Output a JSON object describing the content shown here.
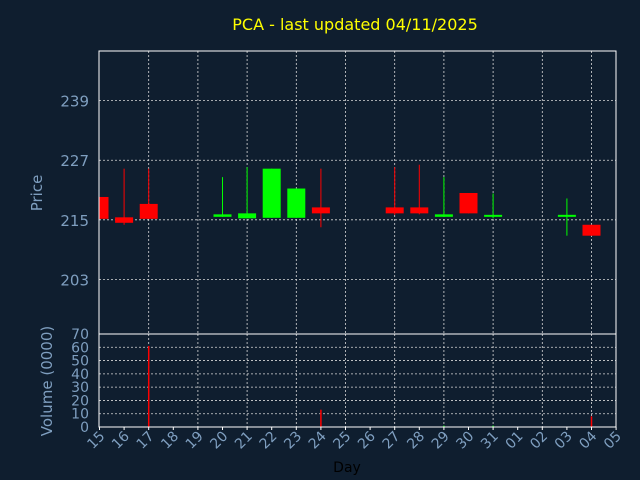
{
  "chart_data": {
    "type": "candlestick",
    "title": "PCA - last updated 04/11/2025",
    "ylabel": "Price",
    "volume_label": "Volume (0000)",
    "xlabel": "Day",
    "ylim": [
      192,
      249
    ],
    "yticks": [
      203,
      215,
      227,
      239
    ],
    "volume_ylim": [
      0,
      70
    ],
    "volume_yticks": [
      0,
      10,
      20,
      30,
      40,
      50,
      60,
      70
    ],
    "x_ticks": [
      "15",
      "16",
      "17",
      "18",
      "19",
      "20",
      "21",
      "22",
      "23",
      "24",
      "25",
      "26",
      "27",
      "28",
      "29",
      "30",
      "31",
      "01",
      "02",
      "03",
      "04",
      "05"
    ],
    "grid": true,
    "colors": {
      "up": "#00ff00",
      "down": "#ff0000",
      "background": "#0f1e2f",
      "title": "#ffff00",
      "axis_text": "#7f9fc0"
    },
    "candles": [
      {
        "x": "15",
        "open": 219.6,
        "high": 219.6,
        "low": 215.2,
        "close": 215.2
      },
      {
        "x": "16",
        "open": 215.5,
        "high": 225.3,
        "low": 214.0,
        "close": 214.4
      },
      {
        "x": "17",
        "open": 218.2,
        "high": 225.3,
        "low": 215.2,
        "close": 215.2
      },
      {
        "x": "20",
        "open": 215.6,
        "high": 223.6,
        "low": 215.6,
        "close": 216.1
      },
      {
        "x": "21",
        "open": 215.3,
        "high": 225.6,
        "low": 215.3,
        "close": 216.3
      },
      {
        "x": "22",
        "open": 215.4,
        "high": 225.3,
        "low": 215.4,
        "close": 225.3
      },
      {
        "x": "23",
        "open": 215.4,
        "high": 221.3,
        "low": 215.4,
        "close": 221.3
      },
      {
        "x": "24",
        "open": 217.5,
        "high": 225.3,
        "low": 213.5,
        "close": 216.3
      },
      {
        "x": "27",
        "open": 217.5,
        "high": 225.6,
        "low": 216.0,
        "close": 216.3
      },
      {
        "x": "28",
        "open": 217.5,
        "high": 226.1,
        "low": 216.1,
        "close": 216.3
      },
      {
        "x": "29",
        "open": 215.6,
        "high": 223.6,
        "low": 215.6,
        "close": 216.1
      },
      {
        "x": "30",
        "open": 220.4,
        "high": 220.4,
        "low": 216.3,
        "close": 216.3
      },
      {
        "x": "31",
        "open": 215.6,
        "high": 220.3,
        "low": 215.3,
        "close": 216.0
      },
      {
        "x": "03",
        "open": 215.6,
        "high": 219.3,
        "low": 211.8,
        "close": 216.0
      },
      {
        "x": "04",
        "open": 214.0,
        "high": 214.0,
        "low": 211.8,
        "close": 211.8
      }
    ],
    "volume": [
      {
        "x": "17",
        "value": 61,
        "color": "#ff0000"
      },
      {
        "x": "24",
        "value": 13,
        "color": "#ff0000"
      },
      {
        "x": "29",
        "value": 1,
        "color": "#00ff00"
      },
      {
        "x": "31",
        "value": 1,
        "color": "#00ff00"
      },
      {
        "x": "04",
        "value": 8,
        "color": "#ff0000"
      }
    ]
  }
}
